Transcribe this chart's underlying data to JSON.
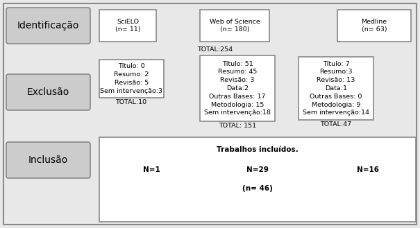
{
  "bg_color": "#e8e8e8",
  "outer_border_color": "#888888",
  "box_edge_color": "#888888",
  "rounded_fill": "#cccccc",
  "white_fill": "#ffffff",
  "text_color": "#000000",
  "label_identificacao": "Identificação",
  "label_exclusao": "Exclusão",
  "label_inclusao": "Inclusão",
  "scielo_text": "SciELO\n(n= 11)",
  "wos_text": "Web of Science\n(n= 180)",
  "medline_text": "Medline\n(n= 63)",
  "total254_text": "TOTAL:254",
  "excl_scielo_text": "Título: 0\nResumo: 2\nRevisão: 5\nSem intervenção:3",
  "excl_scielo_total": "TOTAL:10",
  "excl_wos_text": "Título: 51\nResumo: 45\nRevisão: 3\nData:2\nOutras Bases: 17\nMetodologia: 15\nSem intervenção:18",
  "excl_wos_total": "TOTAL: 151",
  "excl_medline_text": "Título: 7\nResumo:3\nRevisão: 13\nData:1\nOutras Bases: 0\nMetodologia: 9\nSem intervenção:14",
  "excl_medline_total": "TOTAL:47",
  "inclusao_title": "Trabalhos incluídos.",
  "inclusao_n1": "N=1",
  "inclusao_n29": "N=29",
  "inclusao_n16": "N=16",
  "inclusao_total": "(n= 46)",
  "font_size_label": 10,
  "font_size_small": 6.8,
  "font_size_total": 6.8,
  "font_size_inclusion": 7.5
}
